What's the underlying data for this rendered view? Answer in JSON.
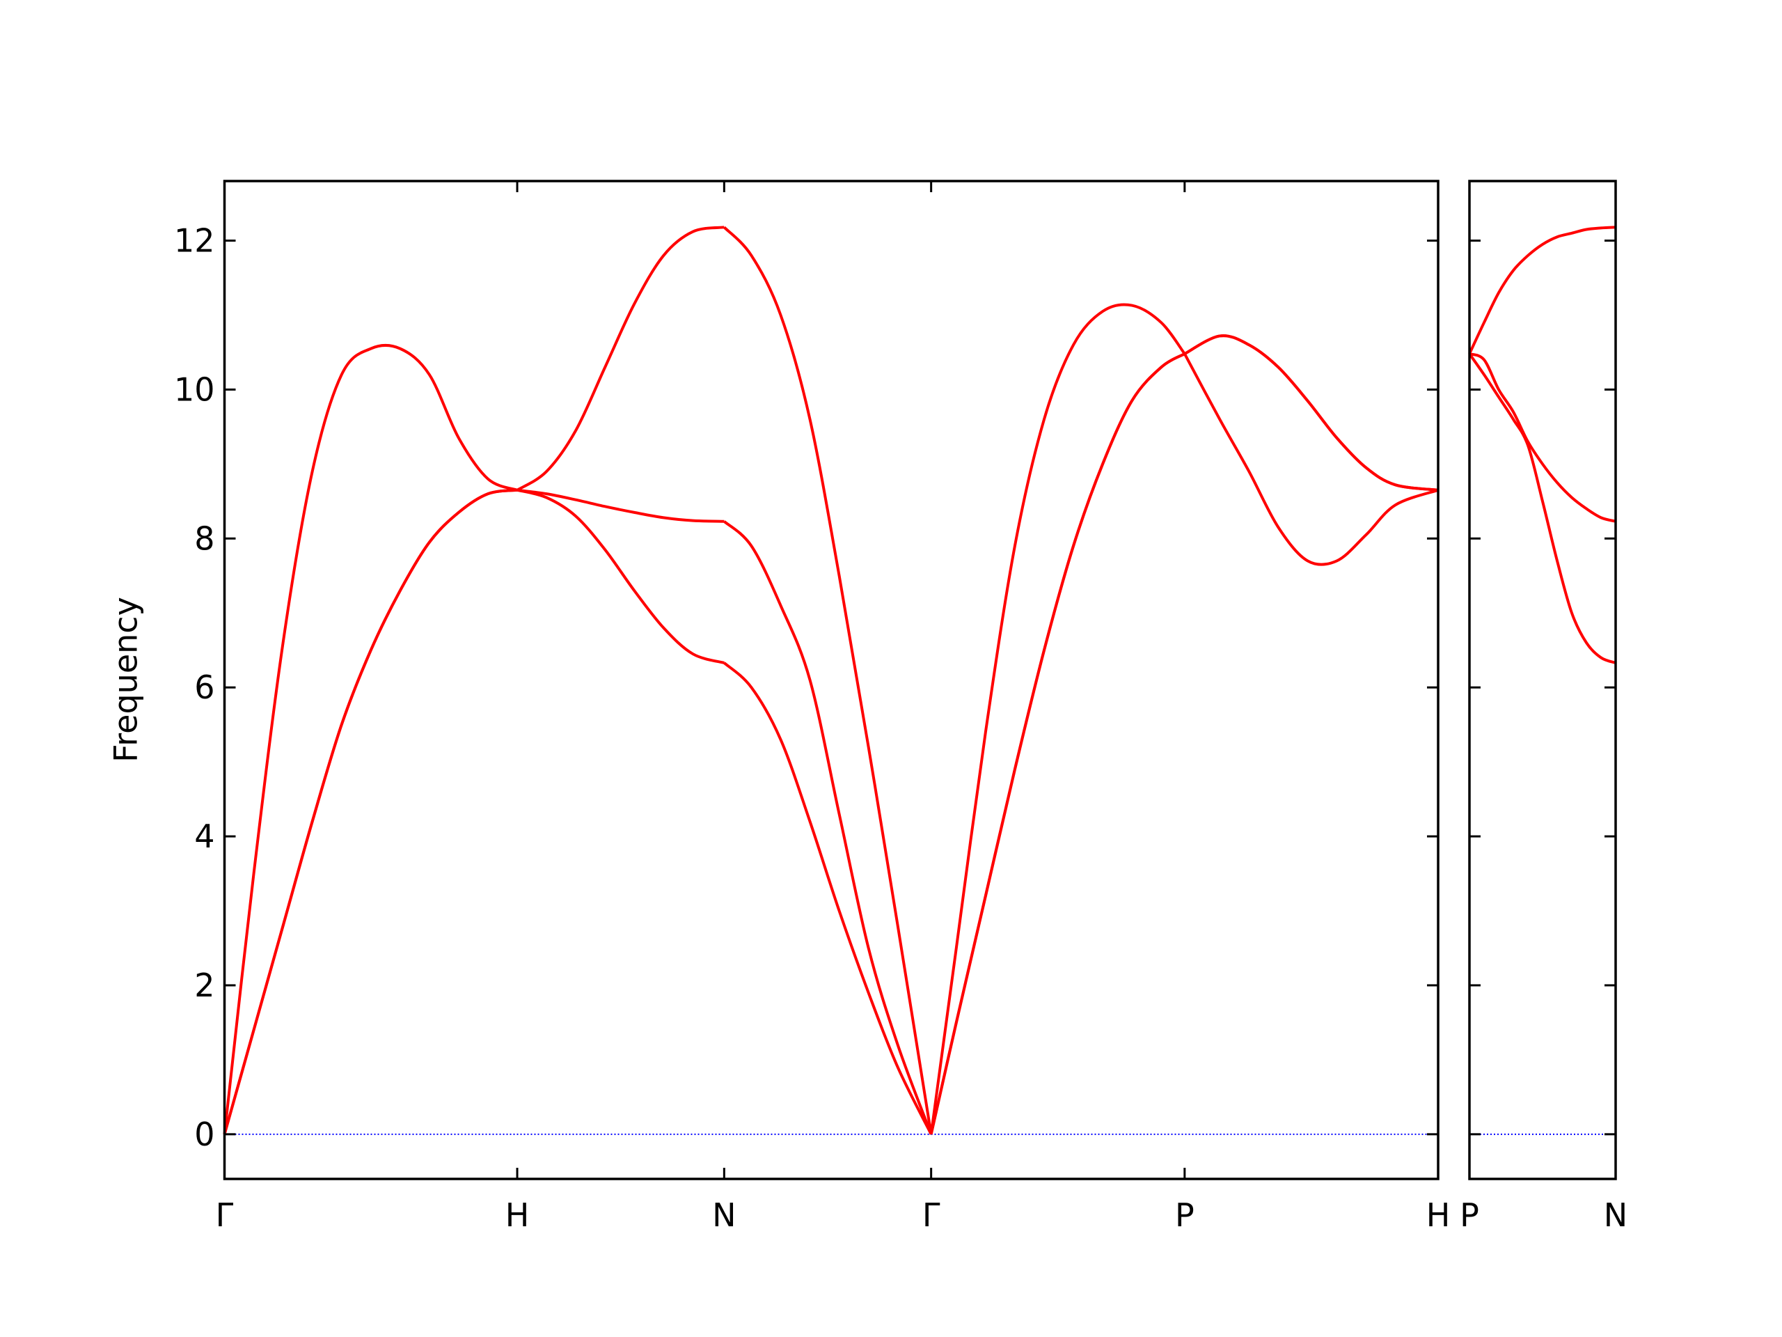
{
  "chart_data": [
    {
      "type": "line",
      "y_label": "Frequency",
      "x": [
        0,
        0.1,
        0.2,
        0.3,
        0.4,
        0.5,
        0.6,
        0.7,
        0.8,
        0.9,
        1,
        1.1,
        1.2,
        1.3,
        1.4,
        1.5,
        1.6,
        1.707,
        1.8,
        1.9,
        2.0,
        2.1,
        2.2,
        2.3,
        2.414,
        2.5,
        2.6,
        2.7,
        2.8,
        2.9,
        3.0,
        3.1,
        3.2,
        3.28,
        3.4,
        3.5,
        3.6,
        3.7,
        3.8,
        3.9,
        4.0,
        4.146
      ],
      "series": [
        {
          "color": "#ff0000",
          "values": [
            0,
            1.4,
            2.8,
            4.2,
            5.5,
            6.5,
            7.3,
            7.95,
            8.35,
            8.6,
            8.65,
            8.55,
            8.3,
            7.85,
            7.3,
            6.8,
            6.45,
            6.33,
            6.0,
            5.3,
            4.2,
            3.0,
            1.9,
            0.9,
            0,
            1.5,
            3.2,
            4.9,
            6.5,
            7.9,
            9.0,
            9.85,
            10.3,
            10.48,
            9.6,
            8.9,
            8.15,
            7.7,
            7.7,
            8.05,
            8.45,
            8.65
          ]
        },
        {
          "color": "#ff0000",
          "values": [
            0,
            1.4,
            2.8,
            4.2,
            5.5,
            6.5,
            7.3,
            7.95,
            8.35,
            8.6,
            8.65,
            8.6,
            8.52,
            8.43,
            8.35,
            8.28,
            8.24,
            8.23,
            7.9,
            7.1,
            6.1,
            4.3,
            2.5,
            1.2,
            0,
            1.5,
            3.2,
            4.9,
            6.5,
            7.9,
            9.0,
            9.85,
            10.3,
            10.48,
            10.72,
            10.6,
            10.3,
            9.85,
            9.35,
            8.95,
            8.72,
            8.65
          ]
        },
        {
          "color": "#ff0000",
          "values": [
            0,
            3.5,
            6.6,
            8.9,
            10.2,
            10.55,
            10.55,
            10.2,
            9.35,
            8.8,
            8.65,
            8.9,
            9.45,
            10.3,
            11.15,
            11.8,
            12.12,
            12.18,
            11.8,
            11.0,
            9.6,
            7.5,
            5.2,
            2.8,
            0,
            2.5,
            5.4,
            7.9,
            9.6,
            10.6,
            11.05,
            11.13,
            10.9,
            10.48,
            10.72,
            10.6,
            10.3,
            9.85,
            9.35,
            8.95,
            8.72,
            8.65
          ]
        }
      ],
      "xlim": [
        0,
        4.146
      ],
      "xticks": [
        {
          "value": 0,
          "label": "Γ"
        },
        {
          "value": 1,
          "label": "H"
        },
        {
          "value": 1.707,
          "label": "N"
        },
        {
          "value": 2.414,
          "label": "Γ"
        },
        {
          "value": 3.28,
          "label": "P"
        },
        {
          "value": 4.146,
          "label": "H"
        }
      ],
      "ylim": [
        -0.6,
        12.8
      ],
      "yticks": [
        0,
        2,
        4,
        6,
        8,
        10,
        12
      ],
      "show_ytick_labels": true,
      "hline": {
        "value": 0,
        "color": "#0000ff",
        "style": "dotted"
      }
    },
    {
      "type": "line",
      "x": [
        0,
        0.05,
        0.1,
        0.15,
        0.2,
        0.25,
        0.3,
        0.35,
        0.4,
        0.45,
        0.5
      ],
      "series": [
        {
          "color": "#ff0000",
          "values": [
            10.48,
            10.2,
            9.9,
            9.6,
            9.25,
            8.5,
            7.7,
            7.0,
            6.6,
            6.4,
            6.33
          ]
        },
        {
          "color": "#ff0000",
          "values": [
            10.48,
            10.4,
            10.0,
            9.7,
            9.3,
            9.0,
            8.75,
            8.55,
            8.4,
            8.28,
            8.23
          ]
        },
        {
          "color": "#ff0000",
          "values": [
            10.48,
            10.9,
            11.3,
            11.6,
            11.8,
            11.95,
            12.05,
            12.1,
            12.15,
            12.17,
            12.18
          ]
        }
      ],
      "xlim": [
        0,
        0.5
      ],
      "xticks": [
        {
          "value": 0,
          "label": "P"
        },
        {
          "value": 0.5,
          "label": "N"
        }
      ],
      "ylim": [
        -0.6,
        12.8
      ],
      "yticks": [
        0,
        2,
        4,
        6,
        8,
        10,
        12
      ],
      "show_ytick_labels": false,
      "hline": {
        "value": 0,
        "color": "#0000ff",
        "style": "dotted"
      }
    }
  ]
}
